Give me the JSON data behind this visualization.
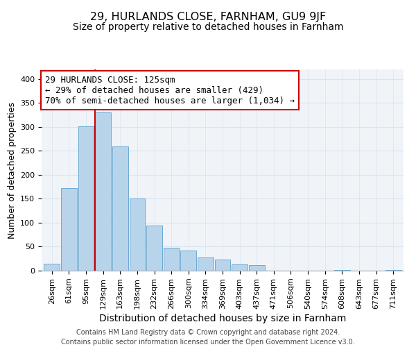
{
  "title": "29, HURLANDS CLOSE, FARNHAM, GU9 9JF",
  "subtitle": "Size of property relative to detached houses in Farnham",
  "xlabel": "Distribution of detached houses by size in Farnham",
  "ylabel": "Number of detached properties",
  "categories": [
    "26sqm",
    "61sqm",
    "95sqm",
    "129sqm",
    "163sqm",
    "198sqm",
    "232sqm",
    "266sqm",
    "300sqm",
    "334sqm",
    "369sqm",
    "403sqm",
    "437sqm",
    "471sqm",
    "506sqm",
    "540sqm",
    "574sqm",
    "608sqm",
    "643sqm",
    "677sqm",
    "711sqm"
  ],
  "values": [
    15,
    172,
    301,
    330,
    259,
    151,
    94,
    48,
    42,
    27,
    23,
    13,
    11,
    0,
    0,
    0,
    0,
    2,
    0,
    0,
    2
  ],
  "bar_color": "#b8d4eb",
  "bar_edge_color": "#6aaad4",
  "vline_x_index": 3,
  "vline_color": "#cc0000",
  "annotation_line1": "29 HURLANDS CLOSE: 125sqm",
  "annotation_line2": "← 29% of detached houses are smaller (429)",
  "annotation_line3": "70% of semi-detached houses are larger (1,034) →",
  "annotation_box_edge_color": "#cc0000",
  "annotation_box_face_color": "#ffffff",
  "ylim": [
    0,
    420
  ],
  "yticks": [
    0,
    50,
    100,
    150,
    200,
    250,
    300,
    350,
    400
  ],
  "footer_text": "Contains HM Land Registry data © Crown copyright and database right 2024.\nContains public sector information licensed under the Open Government Licence v3.0.",
  "title_fontsize": 11.5,
  "subtitle_fontsize": 10,
  "xlabel_fontsize": 10,
  "ylabel_fontsize": 9,
  "tick_fontsize": 8,
  "annotation_fontsize": 9,
  "footer_fontsize": 7,
  "grid_color": "#d8e4f0",
  "background_color": "#f0f4f8"
}
